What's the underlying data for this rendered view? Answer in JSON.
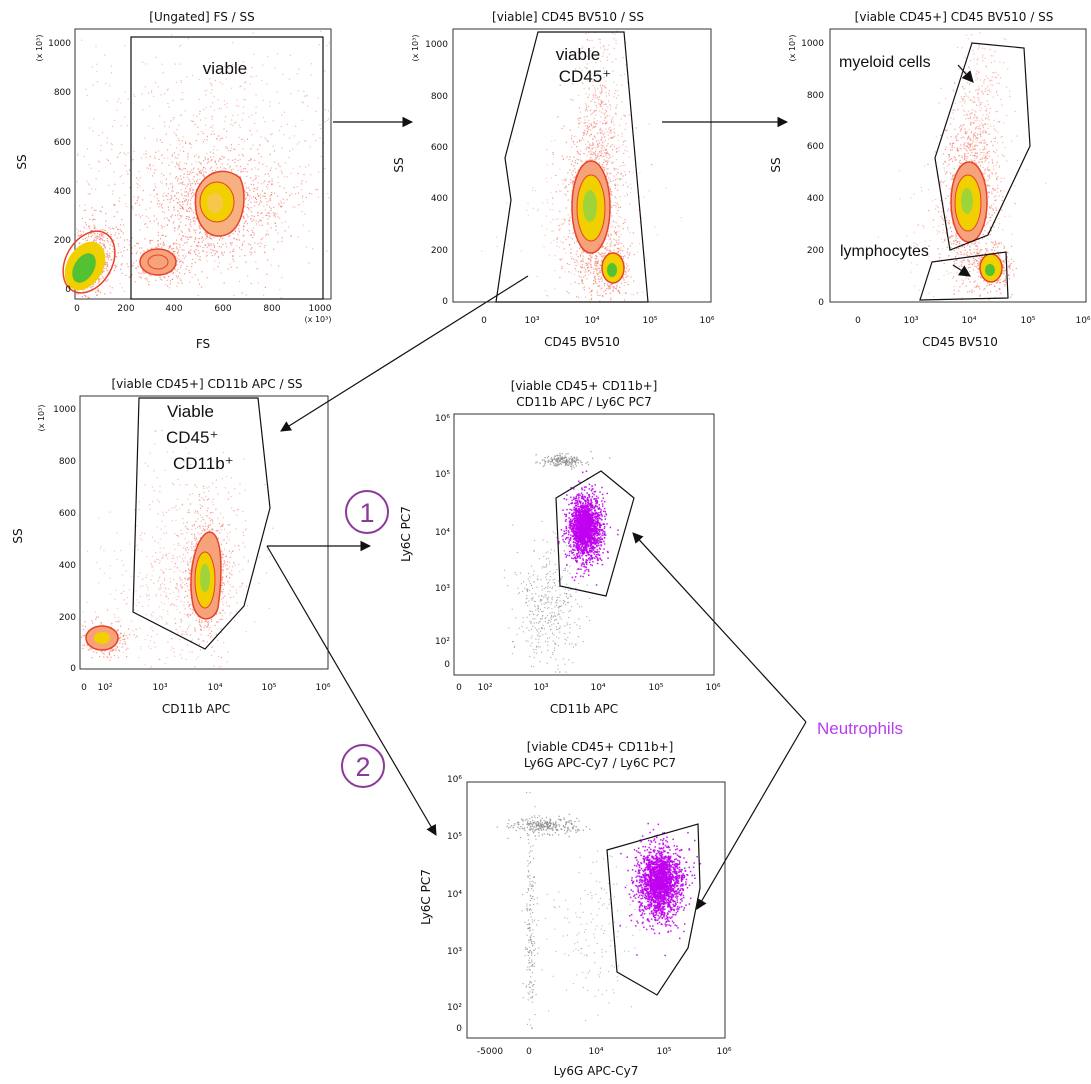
{
  "panels": [
    {
      "id": "p1",
      "title_lines": [
        "[Ungated] FS / SS"
      ],
      "xlabel": "FS",
      "ylabel": "SS",
      "y_scale_note": "(x 10³)",
      "x_scale_note": "(x 10³)",
      "y_ticks": [
        "0",
        "200",
        "400",
        "600",
        "800",
        "1000"
      ],
      "x_ticks": [
        "0",
        "200",
        "400",
        "600",
        "800",
        "1000"
      ],
      "gate_label_lines": [
        "viable"
      ]
    },
    {
      "id": "p2",
      "title_lines": [
        "[viable] CD45 BV510 / SS"
      ],
      "xlabel": "CD45 BV510",
      "ylabel": "SS",
      "y_scale_note": "(x 10³)",
      "y_ticks": [
        "0",
        "200",
        "400",
        "600",
        "800",
        "1000"
      ],
      "x_ticks": [
        "0",
        "10³",
        "10⁴",
        "10⁵",
        "10⁶"
      ],
      "gate_label_lines": [
        "viable",
        "CD45⁺"
      ]
    },
    {
      "id": "p3",
      "title_lines": [
        "[viable CD45+] CD45 BV510 / SS"
      ],
      "xlabel": "CD45 BV510",
      "ylabel": "SS",
      "y_scale_note": "(x 10³)",
      "y_ticks": [
        "0",
        "200",
        "400",
        "600",
        "800",
        "1000"
      ],
      "x_ticks": [
        "0",
        "10³",
        "10⁴",
        "10⁵",
        "10⁶"
      ],
      "gate_labels": [
        "myeloid cells",
        "lymphocytes"
      ]
    },
    {
      "id": "p4",
      "title_lines": [
        "[viable CD45+] CD11b APC / SS"
      ],
      "xlabel": "CD11b APC",
      "ylabel": "SS",
      "y_scale_note": "(x 10³)",
      "y_ticks": [
        "0",
        "200",
        "400",
        "600",
        "800",
        "1000"
      ],
      "x_ticks": [
        "0",
        "10²",
        "10³",
        "10⁴",
        "10⁵",
        "10⁶"
      ],
      "gate_label_lines": [
        "Viable",
        "CD45⁺",
        "CD11b⁺"
      ]
    },
    {
      "id": "p5",
      "title_lines": [
        "[viable CD45+ CD11b+]",
        "CD11b APC / Ly6C PC7"
      ],
      "xlabel": "CD11b APC",
      "ylabel": "Ly6C PC7",
      "y_ticks": [
        "0",
        "10²",
        "10³",
        "10⁴",
        "10⁵",
        "10⁶"
      ],
      "x_ticks": [
        "0",
        "10²",
        "10³",
        "10⁴",
        "10⁵",
        "10⁶"
      ]
    },
    {
      "id": "p6",
      "title_lines": [
        "[viable CD45+ CD11b+]",
        "Ly6G APC-Cy7 / Ly6C PC7"
      ],
      "xlabel": "Ly6G APC-Cy7",
      "ylabel": "Ly6C PC7",
      "y_ticks": [
        "0",
        "10²",
        "10³",
        "10⁴",
        "10⁵",
        "10⁶"
      ],
      "x_ticks": [
        "-5000",
        "0",
        "10⁴",
        "10⁵",
        "10⁶"
      ]
    }
  ],
  "step_markers": [
    "1",
    "2"
  ],
  "population_label": "Neutrophils",
  "colors": {
    "dots": "#f07a6a",
    "contour": "#e8412c",
    "core_yellow": "#f2d000",
    "core_green": "#52c232",
    "gated_population": "#c000f0",
    "ungated_dots": "#8a8a8a",
    "marker_circle": "#8b3a9a",
    "neutrophils_text": "#b93cf0"
  }
}
